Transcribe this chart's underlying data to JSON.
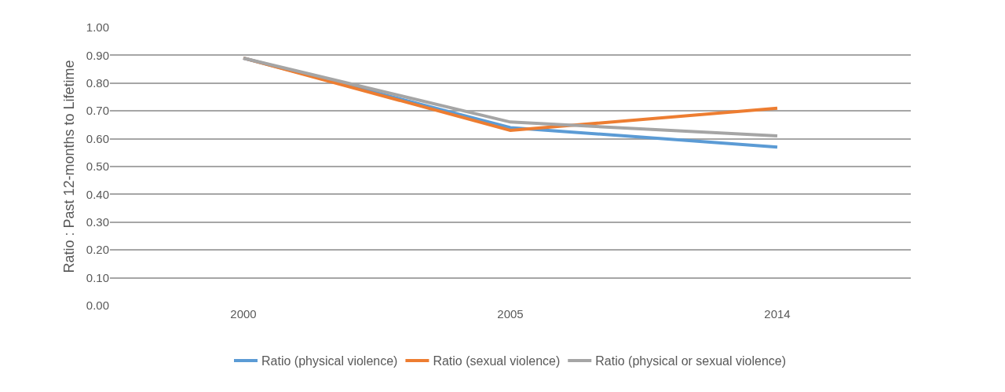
{
  "chart_data": {
    "type": "line",
    "ylabel": "Ratio : Past 12-months to Lifetime",
    "categories": [
      "2000",
      "2005",
      "2014"
    ],
    "series": [
      {
        "name": "Ratio (physical violence)",
        "color": "#5b9bd5",
        "values": [
          0.89,
          0.64,
          0.57
        ]
      },
      {
        "name": "Ratio (sexual violence)",
        "color": "#ed7d31",
        "values": [
          0.89,
          0.63,
          0.71
        ]
      },
      {
        "name": "Ratio (physical or sexual violence)",
        "color": "#a5a5a5",
        "values": [
          0.89,
          0.66,
          0.61
        ]
      }
    ],
    "ylim": [
      0,
      1
    ],
    "yticks": [
      {
        "value": 0,
        "label": "0.00"
      },
      {
        "value": 0.1,
        "label": "0.10"
      },
      {
        "value": 0.2,
        "label": "0.20"
      },
      {
        "value": 0.3,
        "label": "0.30"
      },
      {
        "value": 0.4,
        "label": "0.40"
      },
      {
        "value": 0.5,
        "label": "0.50"
      },
      {
        "value": 0.6,
        "label": "0.60"
      },
      {
        "value": 0.7,
        "label": "0.70"
      },
      {
        "value": 0.8,
        "label": "0.80"
      },
      {
        "value": 0.9,
        "label": "0.90"
      },
      {
        "value": 1,
        "label": "1.00"
      }
    ],
    "grid": "y",
    "legend": "bottom",
    "marker": "none",
    "line_style": "solid"
  }
}
